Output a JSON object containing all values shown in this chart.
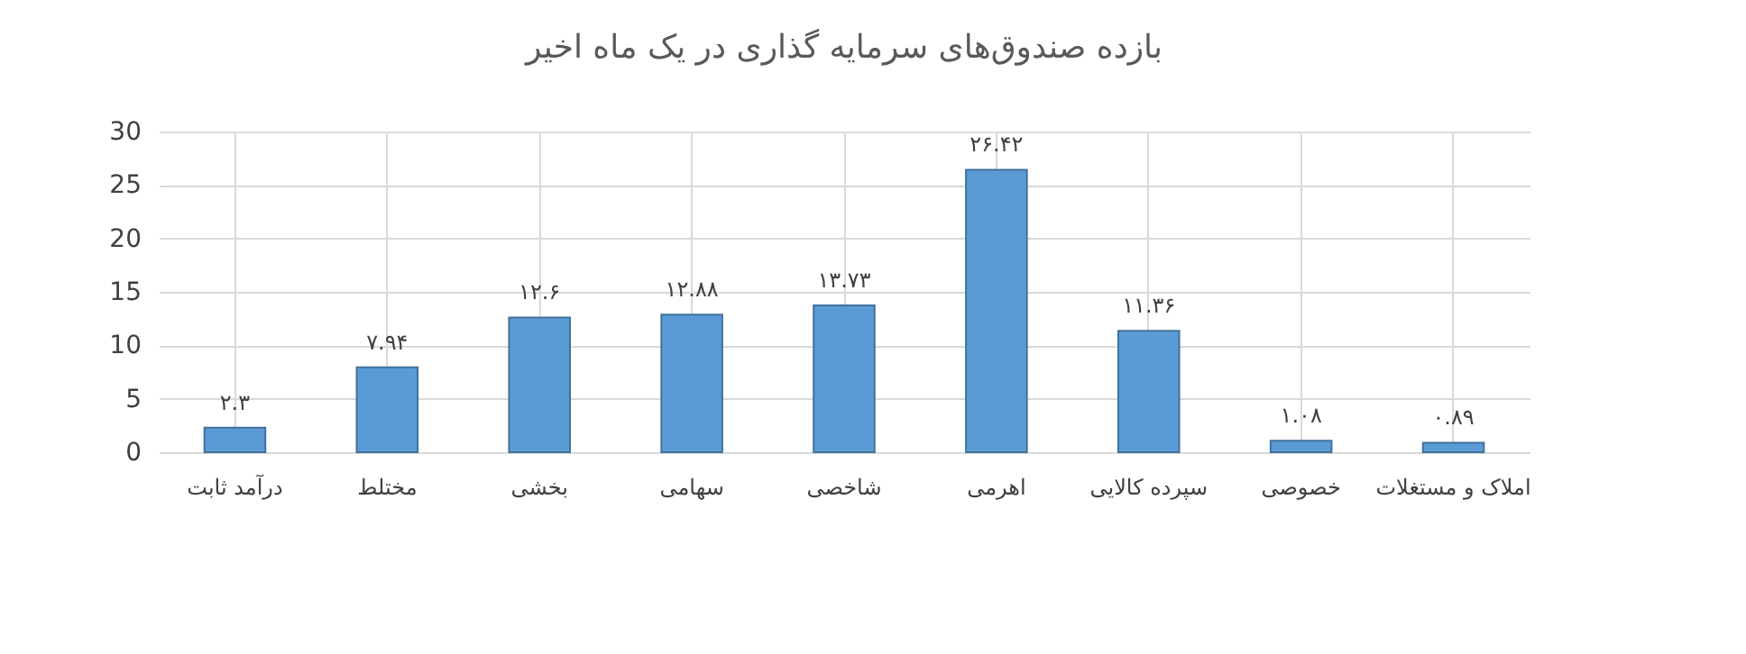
{
  "chart_data": {
    "type": "bar",
    "title": "بازده صندوق‌های سرمایه گذاری در یک ماه اخیر",
    "categories": [
      "درآمد ثابت",
      "مختلط",
      "بخشی",
      "سهامی",
      "شاخصی",
      "اهرمی",
      "سپرده کالایی",
      "خصوصی",
      "املاک و مستغلات"
    ],
    "values": [
      2.3,
      7.94,
      12.6,
      12.88,
      13.73,
      26.42,
      11.36,
      1.08,
      0.89
    ],
    "value_labels": [
      "۲.۳",
      "۷.۹۴",
      "۱۲.۶",
      "۱۲.۸۸",
      "۱۳.۷۳",
      "۲۶.۴۲",
      "۱۱.۳۶",
      "۱.۰۸",
      "۰.۸۹"
    ],
    "color": "#5b9bd5",
    "ylim": [
      0,
      30
    ],
    "yticks": [
      0,
      5,
      10,
      15,
      20,
      25,
      30
    ],
    "grid": true
  }
}
